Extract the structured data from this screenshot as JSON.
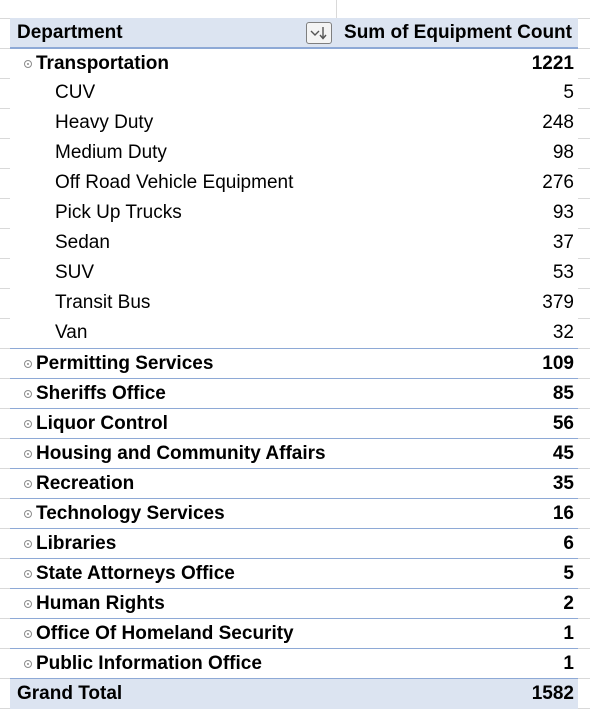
{
  "header": {
    "row_label": "Department",
    "value_label": "Sum of Equipment Count"
  },
  "groups": [
    {
      "name": "Transportation",
      "total": "1221",
      "children": [
        {
          "name": "CUV",
          "value": "5"
        },
        {
          "name": "Heavy Duty",
          "value": "248"
        },
        {
          "name": "Medium Duty",
          "value": "98"
        },
        {
          "name": "Off Road Vehicle Equipment",
          "value": "276"
        },
        {
          "name": "Pick Up Trucks",
          "value": "93"
        },
        {
          "name": "Sedan",
          "value": "37"
        },
        {
          "name": "SUV",
          "value": "53"
        },
        {
          "name": "Transit Bus",
          "value": "379"
        },
        {
          "name": "Van",
          "value": "32"
        }
      ]
    },
    {
      "name": "Permitting Services",
      "total": "109"
    },
    {
      "name": "Sheriffs Office",
      "total": "85"
    },
    {
      "name": "Liquor Control",
      "total": "56"
    },
    {
      "name": "Housing and Community Affairs",
      "total": "45"
    },
    {
      "name": "Recreation",
      "total": "35"
    },
    {
      "name": "Technology Services",
      "total": "16"
    },
    {
      "name": "Libraries",
      "total": "6"
    },
    {
      "name": "State Attorneys Office",
      "total": "5"
    },
    {
      "name": "Human Rights",
      "total": "2"
    },
    {
      "name": "Office Of Homeland Security",
      "total": "1"
    },
    {
      "name": "Public Information Office",
      "total": "1"
    }
  ],
  "grand_total": {
    "label": "Grand Total",
    "value": "1582"
  },
  "icons": {
    "filter": "sort-descending-filter-icon",
    "expand": "expand-collapse-icon"
  },
  "colors": {
    "header_bg": "#dce4f1",
    "border": "#8ea9d6"
  }
}
